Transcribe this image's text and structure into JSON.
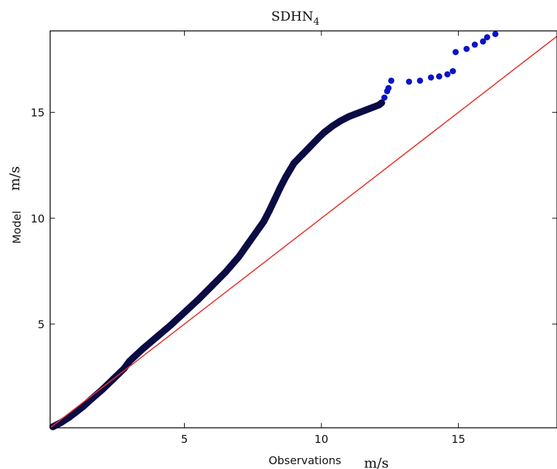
{
  "chart_data": {
    "type": "scatter",
    "title": "SDHN",
    "title_subscript": "4",
    "xlabel": "Observations",
    "xlabel_unit": "m/s",
    "ylabel": "Model",
    "ylabel_unit": "m/s",
    "xlim": [
      0.1,
      18.6
    ],
    "ylim": [
      0.1,
      18.85
    ],
    "x_ticks": [
      5,
      10,
      15
    ],
    "y_ticks": [
      5,
      10,
      15
    ],
    "grid": false,
    "colors": {
      "points_dense": "#0b0b45",
      "points_sparse": "#0a14c8",
      "reference_line": "#e8302a",
      "axes": "#000000"
    },
    "reference_line": {
      "x": [
        0.1,
        18.6
      ],
      "y": [
        0.1,
        18.6
      ]
    },
    "series": [
      {
        "x": [
          0.2,
          0.5,
          0.8,
          1.0,
          1.3,
          1.6,
          2.0,
          2.4,
          2.8,
          3.0,
          3.5,
          4.0,
          4.5,
          5.0,
          5.5,
          6.0,
          6.5,
          7.0,
          7.3,
          7.6,
          7.9,
          8.1,
          8.3,
          8.5,
          8.7,
          9.0,
          9.3,
          9.6,
          9.9,
          10.1,
          10.4,
          10.7,
          11.0,
          11.3,
          11.6,
          11.9,
          12.1,
          12.2
        ],
        "y": [
          0.15,
          0.35,
          0.6,
          0.8,
          1.1,
          1.45,
          1.9,
          2.4,
          2.9,
          3.25,
          3.85,
          4.4,
          4.95,
          5.55,
          6.15,
          6.8,
          7.45,
          8.2,
          8.75,
          9.3,
          9.85,
          10.35,
          10.9,
          11.45,
          11.95,
          12.6,
          13.0,
          13.4,
          13.8,
          14.05,
          14.35,
          14.6,
          14.8,
          14.95,
          15.1,
          15.25,
          15.35,
          15.45
        ]
      },
      {
        "x": [
          12.3,
          12.4,
          12.45,
          12.55,
          13.2,
          13.6,
          14.0,
          14.3,
          14.6,
          14.8,
          14.9,
          15.3,
          15.6,
          15.9,
          16.05,
          16.35
        ],
        "y": [
          15.7,
          16.0,
          16.15,
          16.5,
          16.45,
          16.5,
          16.65,
          16.7,
          16.8,
          16.95,
          17.85,
          18.0,
          18.2,
          18.35,
          18.55,
          18.7
        ]
      }
    ]
  }
}
